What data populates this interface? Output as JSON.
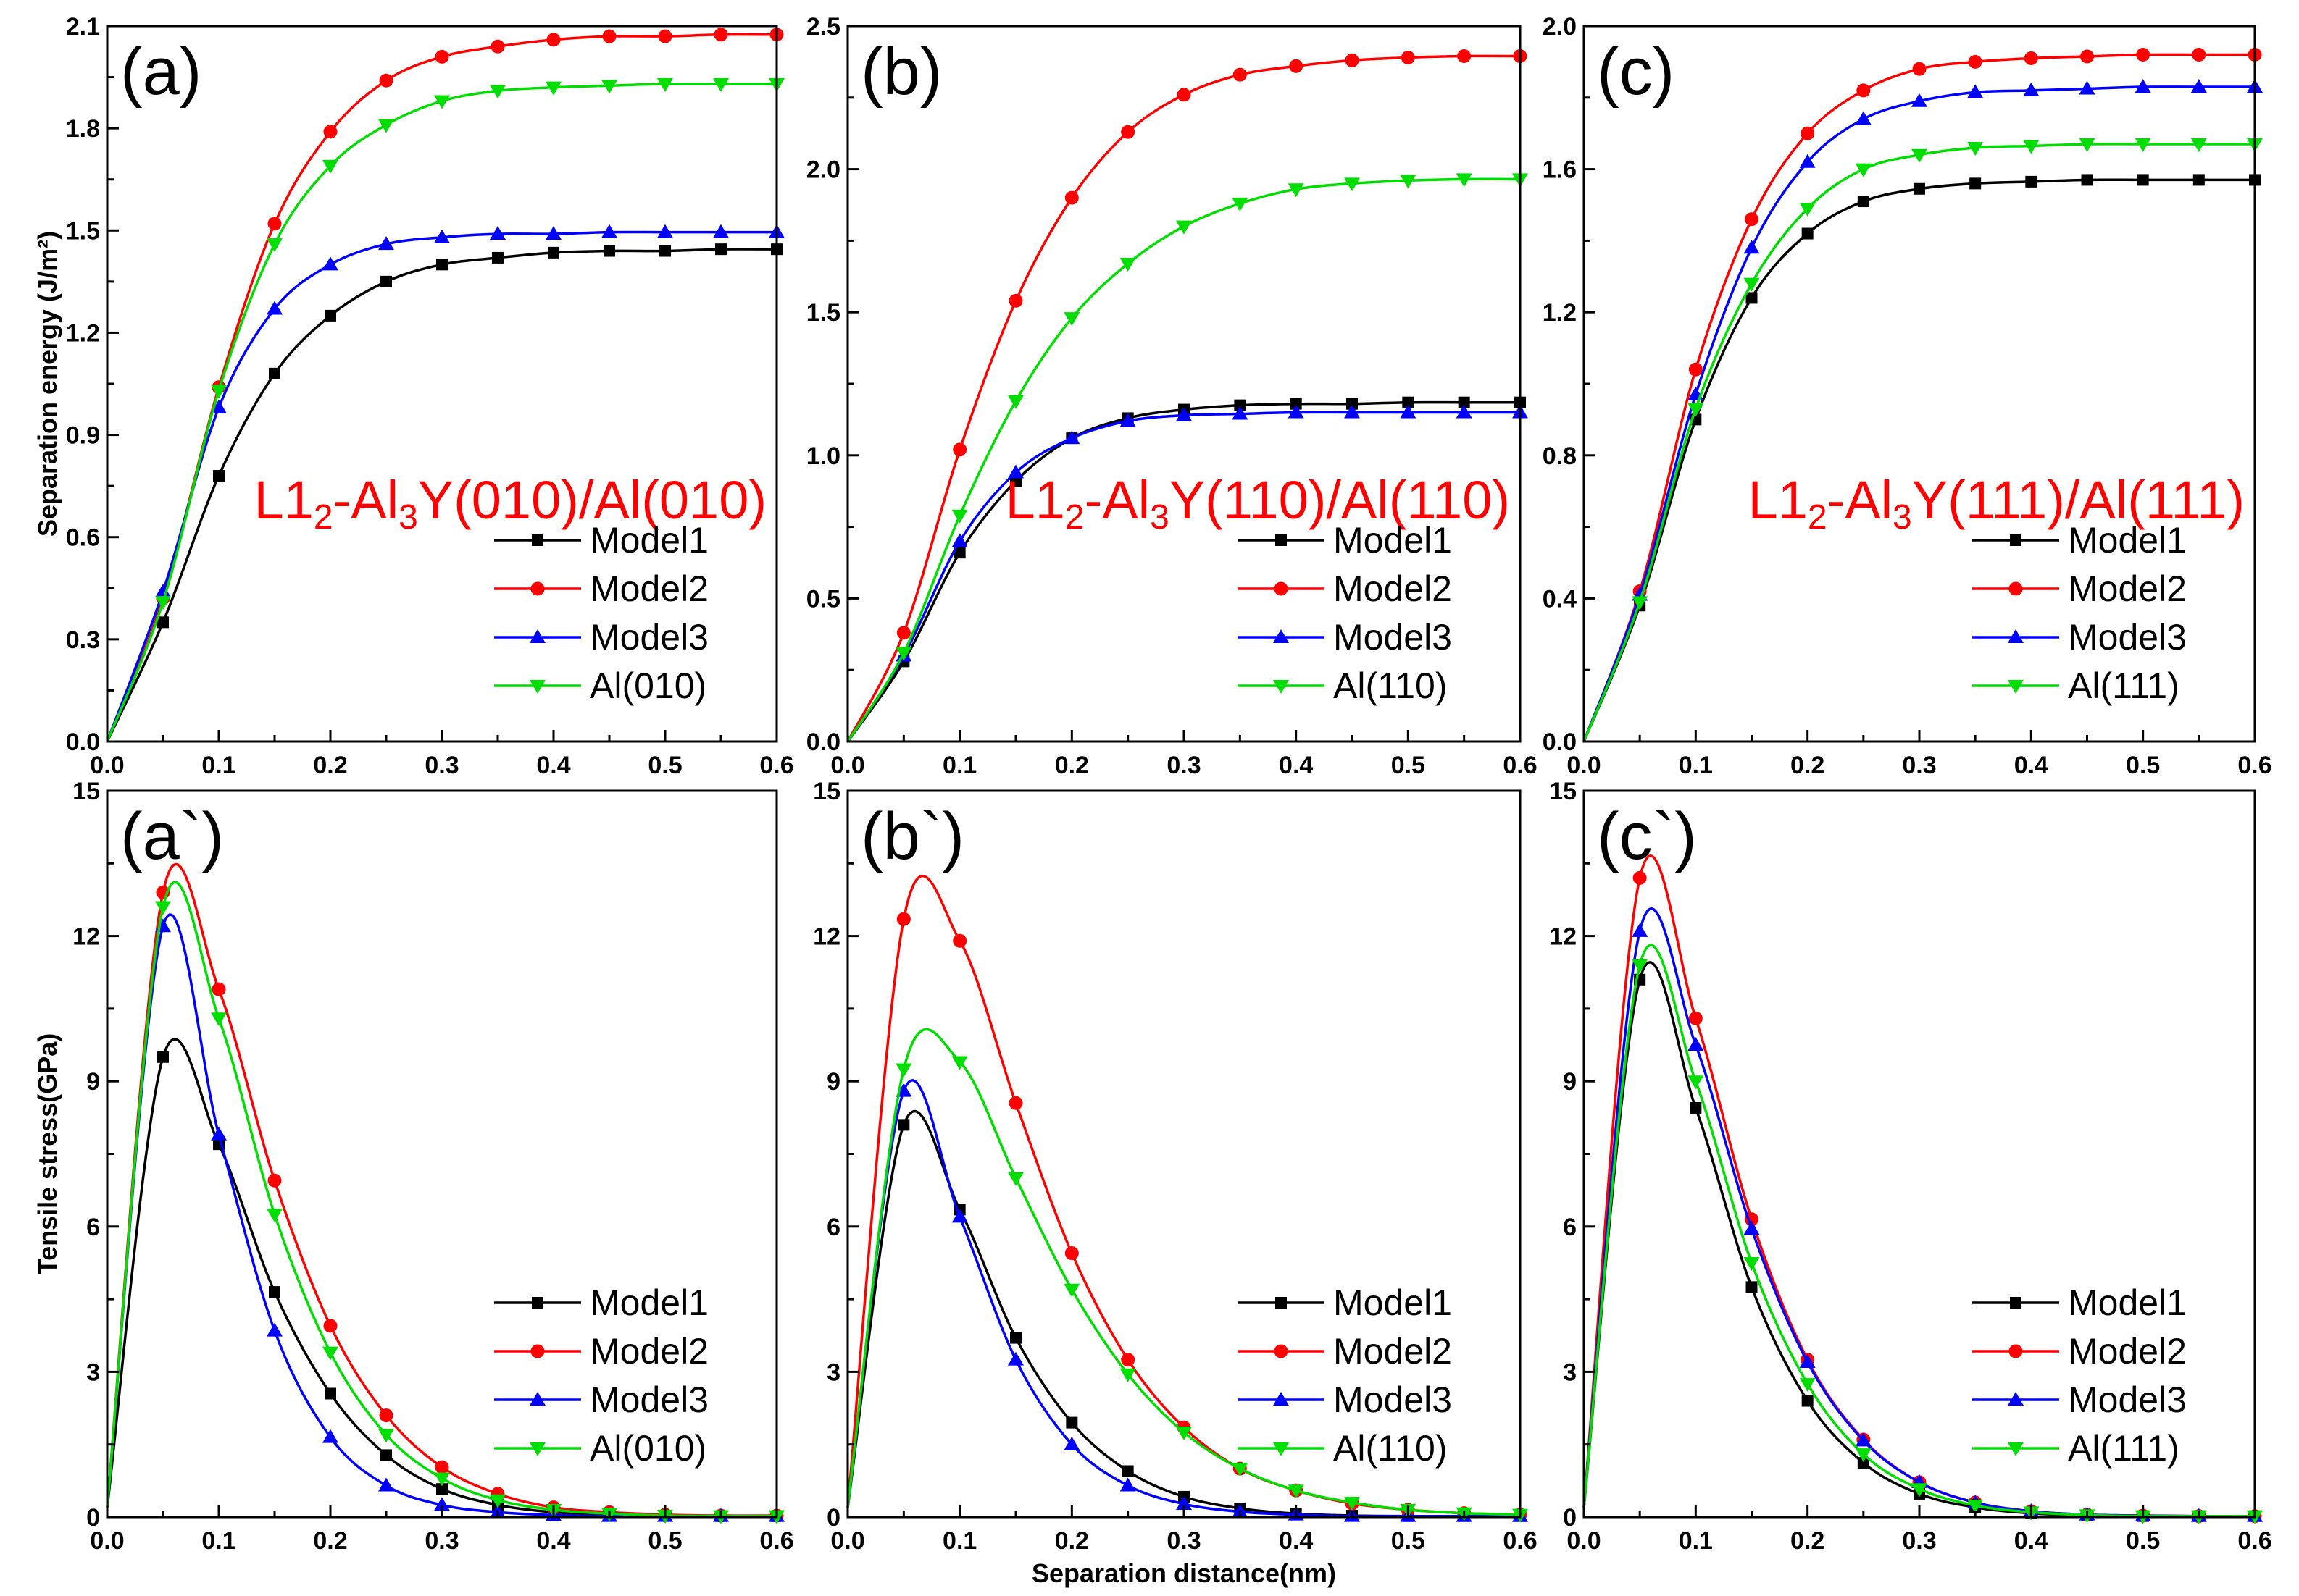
{
  "figure": {
    "colors": {
      "Model1": "#000000",
      "Model2": "#ff0000",
      "Model3": "#0000ff",
      "Al": "#00dd00",
      "annotation": "#ff0000"
    },
    "marker_shapes": {
      "Model1": "square",
      "Model2": "circle",
      "Model3": "triangle-up",
      "Al": "triangle-down"
    }
  },
  "chart_data": [
    {
      "id": "a",
      "type": "line",
      "panel_label": "(a)",
      "annotation": {
        "prefix": "L1",
        "sub1": "2",
        "mid": "-Al",
        "sub2": "3",
        "suffix": "Y(010)/Al(010)"
      },
      "ylabel": "Separation energy (J/m²)",
      "xlabel": "",
      "xlim": [
        0,
        0.6
      ],
      "ylim": [
        0,
        2.1
      ],
      "xticks": [
        "0.0",
        "0.1",
        "0.2",
        "0.3",
        "0.4",
        "0.5",
        "0.6"
      ],
      "yticks": [
        "0.0",
        "0.3",
        "0.6",
        "0.9",
        "1.2",
        "1.5",
        "1.8",
        "2.1"
      ],
      "legend": {
        "position": "bottom-right"
      },
      "x": [
        0,
        0.05,
        0.1,
        0.15,
        0.2,
        0.25,
        0.3,
        0.35,
        0.4,
        0.45,
        0.5,
        0.55,
        0.6
      ],
      "series": [
        {
          "name": "Model1",
          "values": [
            0,
            0.35,
            0.78,
            1.08,
            1.25,
            1.35,
            1.4,
            1.42,
            1.435,
            1.44,
            1.44,
            1.445,
            1.445
          ]
        },
        {
          "name": "Model2",
          "values": [
            0,
            0.42,
            1.04,
            1.52,
            1.79,
            1.94,
            2.01,
            2.04,
            2.06,
            2.07,
            2.07,
            2.075,
            2.075
          ]
        },
        {
          "name": "Model3",
          "values": [
            0,
            0.44,
            0.98,
            1.27,
            1.4,
            1.46,
            1.48,
            1.49,
            1.49,
            1.495,
            1.495,
            1.495,
            1.495
          ]
        },
        {
          "name": "Al(010)",
          "values": [
            0,
            0.41,
            1.03,
            1.46,
            1.69,
            1.81,
            1.88,
            1.91,
            1.92,
            1.925,
            1.93,
            1.93,
            1.93
          ]
        }
      ]
    },
    {
      "id": "b",
      "type": "line",
      "panel_label": "(b)",
      "annotation": {
        "prefix": "L1",
        "sub1": "2",
        "mid": "-Al",
        "sub2": "3",
        "suffix": "Y(110)/Al(110)"
      },
      "ylabel": "",
      "xlabel": "",
      "xlim": [
        0,
        0.6
      ],
      "ylim": [
        0,
        2.5
      ],
      "xticks": [
        "0.0",
        "0.1",
        "0.2",
        "0.3",
        "0.4",
        "0.5",
        "0.6"
      ],
      "yticks": [
        "0.0",
        "0.5",
        "1.0",
        "1.5",
        "2.0",
        "2.5"
      ],
      "legend": {
        "position": "bottom-right"
      },
      "x": [
        0,
        0.05,
        0.1,
        0.15,
        0.2,
        0.25,
        0.3,
        0.35,
        0.4,
        0.45,
        0.5,
        0.55,
        0.6
      ],
      "series": [
        {
          "name": "Model1",
          "values": [
            0,
            0.28,
            0.66,
            0.91,
            1.06,
            1.13,
            1.16,
            1.175,
            1.18,
            1.18,
            1.185,
            1.185,
            1.185
          ]
        },
        {
          "name": "Model2",
          "values": [
            0,
            0.38,
            1.02,
            1.54,
            1.9,
            2.13,
            2.26,
            2.33,
            2.36,
            2.38,
            2.39,
            2.395,
            2.395
          ]
        },
        {
          "name": "Model3",
          "values": [
            0,
            0.3,
            0.7,
            0.94,
            1.06,
            1.12,
            1.14,
            1.145,
            1.15,
            1.15,
            1.15,
            1.15,
            1.15
          ]
        },
        {
          "name": "Al(110)",
          "values": [
            0,
            0.31,
            0.79,
            1.19,
            1.48,
            1.67,
            1.8,
            1.88,
            1.93,
            1.95,
            1.96,
            1.965,
            1.965
          ]
        }
      ]
    },
    {
      "id": "c",
      "type": "line",
      "panel_label": "(c)",
      "annotation": {
        "prefix": "L1",
        "sub1": "2",
        "mid": "-Al",
        "sub2": "3",
        "suffix": "Y(111)/Al(111)"
      },
      "ylabel": "",
      "xlabel": "",
      "xlim": [
        0,
        0.6
      ],
      "ylim": [
        0,
        2.0
      ],
      "xticks": [
        "0.0",
        "0.1",
        "0.2",
        "0.3",
        "0.4",
        "0.5",
        "0.6"
      ],
      "yticks": [
        "0.0",
        "0.4",
        "0.8",
        "1.2",
        "1.6",
        "2.0"
      ],
      "legend": {
        "position": "bottom-right"
      },
      "x": [
        0,
        0.05,
        0.1,
        0.15,
        0.2,
        0.25,
        0.3,
        0.35,
        0.4,
        0.45,
        0.5,
        0.55,
        0.6
      ],
      "series": [
        {
          "name": "Model1",
          "values": [
            0,
            0.38,
            0.9,
            1.24,
            1.42,
            1.51,
            1.545,
            1.56,
            1.565,
            1.57,
            1.57,
            1.57,
            1.57
          ]
        },
        {
          "name": "Model2",
          "values": [
            0,
            0.42,
            1.04,
            1.46,
            1.7,
            1.82,
            1.88,
            1.9,
            1.91,
            1.915,
            1.92,
            1.92,
            1.92
          ]
        },
        {
          "name": "Model3",
          "values": [
            0,
            0.41,
            0.97,
            1.38,
            1.62,
            1.74,
            1.79,
            1.815,
            1.82,
            1.825,
            1.83,
            1.83,
            1.83
          ]
        },
        {
          "name": "Al(111)",
          "values": [
            0,
            0.39,
            0.93,
            1.28,
            1.49,
            1.6,
            1.64,
            1.66,
            1.665,
            1.67,
            1.67,
            1.67,
            1.67
          ]
        }
      ]
    },
    {
      "id": "a2",
      "type": "line",
      "panel_label": "(a`)",
      "ylabel": "Tensile stress(GPa)",
      "xlabel": "",
      "xlim": [
        0,
        0.6
      ],
      "ylim": [
        0,
        15
      ],
      "xticks": [
        "0.0",
        "0.1",
        "0.2",
        "0.3",
        "0.4",
        "0.5",
        "0.6"
      ],
      "yticks": [
        "0",
        "3",
        "6",
        "9",
        "12",
        "15"
      ],
      "legend": {
        "position": "bottom-right"
      },
      "x": [
        0,
        0.05,
        0.1,
        0.15,
        0.2,
        0.25,
        0.3,
        0.35,
        0.4,
        0.45,
        0.5,
        0.55,
        0.6
      ],
      "series": [
        {
          "name": "Model1",
          "values": [
            0.2,
            9.5,
            7.7,
            4.65,
            2.55,
            1.28,
            0.58,
            0.25,
            0.1,
            0.05,
            0.03,
            0.02,
            0.02
          ]
        },
        {
          "name": "Model2",
          "values": [
            0.2,
            12.9,
            10.9,
            6.95,
            3.95,
            2.1,
            1.03,
            0.48,
            0.2,
            0.1,
            0.05,
            0.03,
            0.03
          ]
        },
        {
          "name": "Model3",
          "values": [
            0.2,
            12.2,
            7.9,
            3.85,
            1.65,
            0.65,
            0.25,
            0.1,
            0.04,
            0.02,
            0.02,
            0.02,
            0.02
          ]
        },
        {
          "name": "Al(010)",
          "values": [
            0.2,
            12.6,
            10.3,
            6.25,
            3.4,
            1.7,
            0.8,
            0.35,
            0.15,
            0.07,
            0.03,
            0.02,
            0.02
          ]
        }
      ]
    },
    {
      "id": "b2",
      "type": "line",
      "panel_label": "(b`)",
      "ylabel": "",
      "xlabel": "Separation distance(nm)",
      "xlim": [
        0,
        0.6
      ],
      "ylim": [
        0,
        15
      ],
      "xticks": [
        "0.0",
        "0.1",
        "0.2",
        "0.3",
        "0.4",
        "0.5",
        "0.6"
      ],
      "yticks": [
        "0",
        "3",
        "6",
        "9",
        "12",
        "15"
      ],
      "legend": {
        "position": "bottom-right"
      },
      "x": [
        0,
        0.05,
        0.1,
        0.15,
        0.2,
        0.25,
        0.3,
        0.35,
        0.4,
        0.45,
        0.5,
        0.55,
        0.6
      ],
      "series": [
        {
          "name": "Model1",
          "values": [
            0.2,
            8.1,
            6.35,
            3.7,
            1.95,
            0.95,
            0.42,
            0.18,
            0.07,
            0.03,
            0.02,
            0.02,
            0.02
          ]
        },
        {
          "name": "Model2",
          "values": [
            0.2,
            12.35,
            11.9,
            8.55,
            5.45,
            3.25,
            1.85,
            1.0,
            0.55,
            0.28,
            0.15,
            0.08,
            0.05
          ]
        },
        {
          "name": "Model3",
          "values": [
            0.2,
            8.8,
            6.2,
            3.25,
            1.5,
            0.65,
            0.27,
            0.11,
            0.05,
            0.02,
            0.02,
            0.02,
            0.02
          ]
        },
        {
          "name": "Al(110)",
          "values": [
            0.2,
            9.25,
            9.4,
            7.0,
            4.7,
            2.95,
            1.75,
            1.0,
            0.55,
            0.3,
            0.15,
            0.08,
            0.05
          ]
        }
      ]
    },
    {
      "id": "c2",
      "type": "line",
      "panel_label": "(c`)",
      "ylabel": "",
      "xlabel": "",
      "xlim": [
        0,
        0.6
      ],
      "ylim": [
        0,
        15
      ],
      "xticks": [
        "0.0",
        "0.1",
        "0.2",
        "0.3",
        "0.4",
        "0.5",
        "0.6"
      ],
      "yticks": [
        "0",
        "3",
        "6",
        "9",
        "12",
        "15"
      ],
      "legend": {
        "position": "bottom-right"
      },
      "x": [
        0,
        0.05,
        0.1,
        0.15,
        0.2,
        0.25,
        0.3,
        0.35,
        0.4,
        0.45,
        0.5,
        0.55,
        0.6
      ],
      "series": [
        {
          "name": "Model1",
          "values": [
            0.2,
            11.1,
            8.45,
            4.75,
            2.4,
            1.12,
            0.48,
            0.2,
            0.08,
            0.03,
            0.02,
            0.02,
            0.02
          ]
        },
        {
          "name": "Model2",
          "values": [
            0.2,
            13.2,
            10.3,
            6.15,
            3.25,
            1.6,
            0.72,
            0.3,
            0.12,
            0.05,
            0.03,
            0.02,
            0.02
          ]
        },
        {
          "name": "Model3",
          "values": [
            0.2,
            12.1,
            9.75,
            5.95,
            3.2,
            1.58,
            0.72,
            0.3,
            0.12,
            0.05,
            0.03,
            0.02,
            0.02
          ]
        },
        {
          "name": "Al(111)",
          "values": [
            0.2,
            11.4,
            9.0,
            5.25,
            2.75,
            1.3,
            0.58,
            0.24,
            0.1,
            0.04,
            0.02,
            0.02,
            0.02
          ]
        }
      ]
    }
  ]
}
